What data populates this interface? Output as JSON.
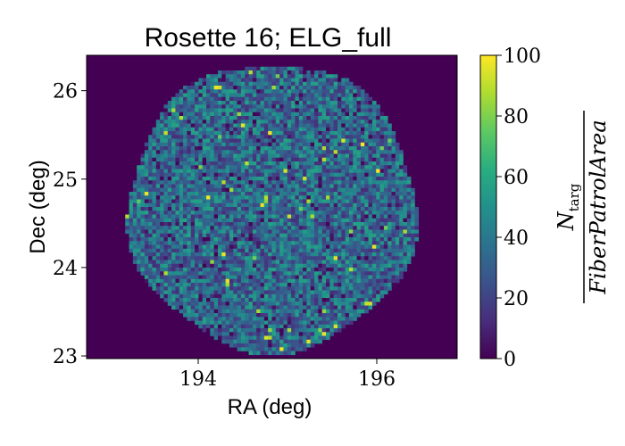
{
  "chart_data": {
    "type": "heatmap",
    "title": "Rosette 16; ELG_full",
    "xlabel": "RA (deg)",
    "ylabel": "Dec (deg)",
    "xlim": [
      192.75,
      196.9
    ],
    "ylim": [
      22.97,
      26.4
    ],
    "xticks": [
      194,
      196
    ],
    "yticks": [
      23,
      24,
      25,
      26
    ],
    "colormap": "viridis",
    "colorbar": {
      "range": [
        0,
        100
      ],
      "ticks": [
        0,
        20,
        40,
        60,
        80,
        100
      ],
      "label_numerator": "N",
      "label_numerator_sub": "targ",
      "label_denominator": "FiberPatrolArea"
    },
    "field": {
      "center_ra": 194.83,
      "center_dec": 24.68,
      "radius_deg": 1.64,
      "typical_value": 35,
      "max_value": 100,
      "outside_value": 0
    },
    "grid": false
  },
  "colors": {
    "viridis": [
      "#440154",
      "#472d7b",
      "#3b528b",
      "#2c728e",
      "#21918c",
      "#28ae80",
      "#5ec962",
      "#addc30",
      "#fde725"
    ]
  }
}
